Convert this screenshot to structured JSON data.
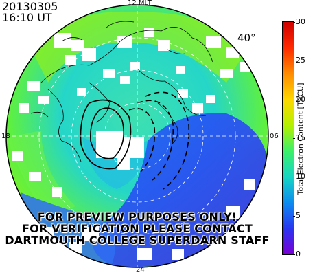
{
  "header": {
    "date": "20130305",
    "time": "16:10 UT"
  },
  "map": {
    "mlt_labels": {
      "top": "12 MLT",
      "left": "18",
      "right": "06",
      "bottom": "24"
    },
    "latitude_label": "40°",
    "projection": "magnetic polar stereographic",
    "grid_style": "dashed white circles and meridians",
    "coastline_color": "#000000"
  },
  "colorbar": {
    "title": "Total Electron Content [TECU]",
    "ticks": [
      "0",
      "5",
      "10",
      "15",
      "20",
      "25",
      "30"
    ],
    "min": 0,
    "max": 30,
    "colors": [
      "#7a00d6",
      "#2a35f0",
      "#0d8cf0",
      "#16d6c4",
      "#3cf06a",
      "#b4f000",
      "#ffd700",
      "#ff8c00",
      "#ff2a00",
      "#d00000"
    ]
  },
  "watermark": {
    "line1": "FOR PREVIEW PURPOSES ONLY!",
    "line2": "FOR VERIFICATION PLEASE CONTACT",
    "line3": "DARTMOUTH COLLEGE SUPERDARN STAFF"
  }
}
